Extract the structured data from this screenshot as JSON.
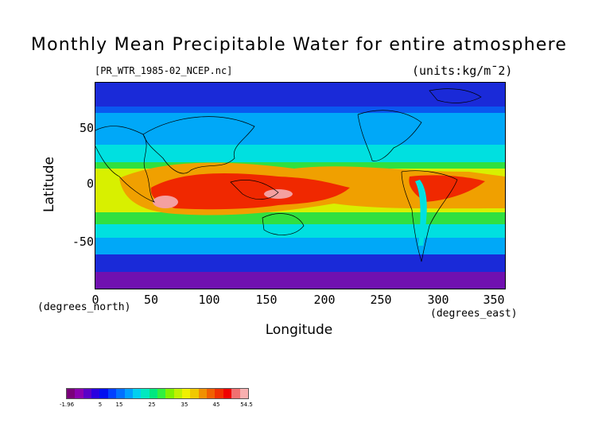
{
  "title": "Monthly Mean Precipitable Water for entire atmosphere",
  "file_label": "[PR_WTR_1985-02_NCEP.nc]",
  "units_label": "(units:kg/m¯2)",
  "y_axis": {
    "label": "Latitude",
    "units": "(degrees_north)",
    "ticks": [
      "50",
      "0",
      "-50"
    ]
  },
  "x_axis": {
    "label": "Longitude",
    "units": "(degrees_east)",
    "ticks": [
      "0",
      "50",
      "100",
      "150",
      "200",
      "250",
      "300",
      "350"
    ]
  },
  "colorbar": {
    "tick_labels": [
      "-1.96",
      "5",
      "15",
      "25",
      "35",
      "45",
      "54.5"
    ],
    "colors": [
      "#7a007a",
      "#8a00b0",
      "#5a00c8",
      "#2a00e0",
      "#0010f0",
      "#0040ff",
      "#0070ff",
      "#00a0ff",
      "#00d0f0",
      "#00e8c0",
      "#00e880",
      "#30f040",
      "#80f000",
      "#c0f000",
      "#f0f000",
      "#f0c800",
      "#f09000",
      "#f06000",
      "#f03000",
      "#f00000",
      "#f07070",
      "#f8b0b0"
    ]
  },
  "map_colors": {
    "polar": "#1a2ad8",
    "high": "#0a58f0",
    "mid": "#00a8f8",
    "cyan": "#00e0e0",
    "green": "#30e040",
    "yellow": "#d8f000",
    "orange": "#f0a000",
    "red": "#f02800",
    "pink": "#f4a0a0",
    "violet": "#7010b0"
  }
}
